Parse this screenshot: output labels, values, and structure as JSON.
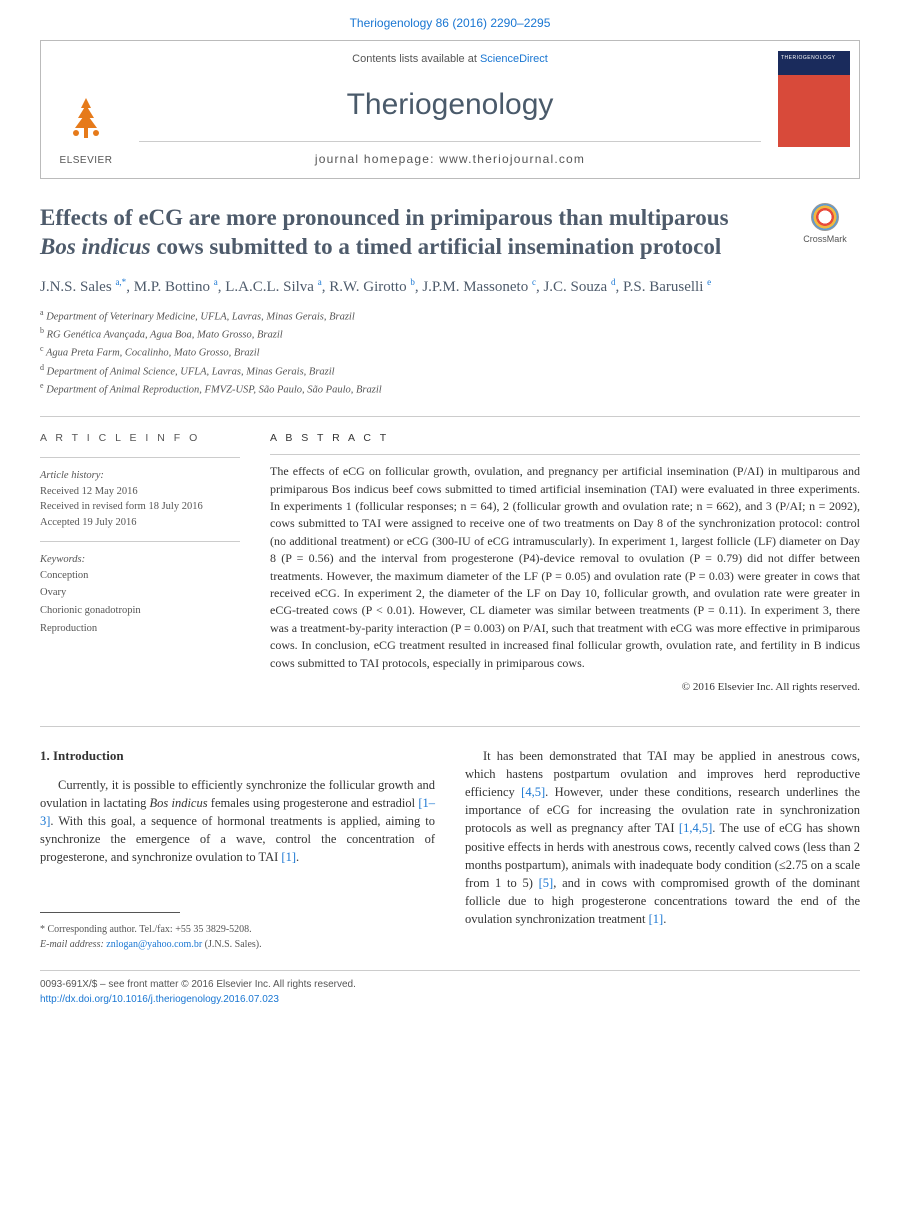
{
  "colors": {
    "link": "#1976d2",
    "heading": "#4e5b6b",
    "text": "#333333",
    "muted": "#555555",
    "rule": "#cccccc"
  },
  "topLink": "Theriogenology 86 (2016) 2290–2295",
  "header": {
    "contentsPrefix": "Contents lists available at ",
    "scienceDirect": "ScienceDirect",
    "journal": "Theriogenology",
    "homepageLabel": "journal homepage: ",
    "homepageUrl": "www.theriojournal.com",
    "publisher": "ELSEVIER"
  },
  "article": {
    "title_pre": "Effects of eCG are more pronounced in primiparous than multiparous ",
    "title_italic": "Bos indicus",
    "title_post": " cows submitted to a timed artificial insemination protocol",
    "crossmark": "CrossMark",
    "authors_html": "J.N.S. Sales <sup>a,*</sup>, M.P. Bottino <sup>a</sup>, L.A.C.L. Silva <sup>a</sup>, R.W. Girotto <sup>b</sup>, J.P.M. Massoneto <sup>c</sup>, J.C. Souza <sup>d</sup>, P.S. Baruselli <sup>e</sup>",
    "affiliations": [
      {
        "sup": "a",
        "text": "Department of Veterinary Medicine, UFLA, Lavras, Minas Gerais, Brazil"
      },
      {
        "sup": "b",
        "text": "RG Genética Avançada, Agua Boa, Mato Grosso, Brazil"
      },
      {
        "sup": "c",
        "text": "Agua Preta Farm, Cocalinho, Mato Grosso, Brazil"
      },
      {
        "sup": "d",
        "text": "Department of Animal Science, UFLA, Lavras, Minas Gerais, Brazil"
      },
      {
        "sup": "e",
        "text": "Department of Animal Reproduction, FMVZ-USP, São Paulo, São Paulo, Brazil"
      }
    ]
  },
  "info": {
    "heading": "A R T I C L E   I N F O",
    "history_label": "Article history:",
    "received": "Received 12 May 2016",
    "revised": "Received in revised form 18 July 2016",
    "accepted": "Accepted 19 July 2016",
    "keywords_label": "Keywords:",
    "keywords": [
      "Conception",
      "Ovary",
      "Chorionic gonadotropin",
      "Reproduction"
    ]
  },
  "abstract": {
    "heading": "A B S T R A C T",
    "text": "The effects of eCG on follicular growth, ovulation, and pregnancy per artificial insemination (P/AI) in multiparous and primiparous Bos indicus beef cows submitted to timed artificial insemination (TAI) were evaluated in three experiments. In experiments 1 (follicular responses; n = 64), 2 (follicular growth and ovulation rate; n = 662), and 3 (P/AI; n = 2092), cows submitted to TAI were assigned to receive one of two treatments on Day 8 of the synchronization protocol: control (no additional treatment) or eCG (300-IU of eCG intramuscularly). In experiment 1, largest follicle (LF) diameter on Day 8 (P = 0.56) and the interval from progesterone (P4)-device removal to ovulation (P = 0.79) did not differ between treatments. However, the maximum diameter of the LF (P = 0.05) and ovulation rate (P = 0.03) were greater in cows that received eCG. In experiment 2, the diameter of the LF on Day 10, follicular growth, and ovulation rate were greater in eCG-treated cows (P < 0.01). However, CL diameter was similar between treatments (P = 0.11). In experiment 3, there was a treatment-by-parity interaction (P = 0.003) on P/AI, such that treatment with eCG was more effective in primiparous cows. In conclusion, eCG treatment resulted in increased final follicular growth, ovulation rate, and fertility in B indicus cows submitted to TAI protocols, especially in primiparous cows.",
    "copyright": "© 2016 Elsevier Inc. All rights reserved."
  },
  "intro": {
    "heading": "1. Introduction",
    "col1": "Currently, it is possible to efficiently synchronize the follicular growth and ovulation in lactating Bos indicus females using progesterone and estradiol [1–3]. With this goal, a sequence of hormonal treatments is applied, aiming to synchronize the emergence of a wave, control the concentration of progesterone, and synchronize ovulation to TAI [1].",
    "col2": "It has been demonstrated that TAI may be applied in anestrous cows, which hastens postpartum ovulation and improves herd reproductive efficiency [4,5]. However, under these conditions, research underlines the importance of eCG for increasing the ovulation rate in synchronization protocols as well as pregnancy after TAI [1,4,5]. The use of eCG has shown positive effects in herds with anestrous cows, recently calved cows (less than 2 months postpartum), animals with inadequate body condition (≤2.75 on a scale from 1 to 5) [5], and in cows with compromised growth of the dominant follicle due to high progesterone concentrations toward the end of the ovulation synchronization treatment [1]."
  },
  "corresponding": {
    "label": "* Corresponding author. Tel./fax: +55 35 3829-5208.",
    "email_label": "E-mail address: ",
    "email": "znlogan@yahoo.com.br",
    "who": " (J.N.S. Sales)."
  },
  "bottom": {
    "issn": "0093-691X/$ – see front matter © 2016 Elsevier Inc. All rights reserved.",
    "doi": "http://dx.doi.org/10.1016/j.theriogenology.2016.07.023"
  }
}
